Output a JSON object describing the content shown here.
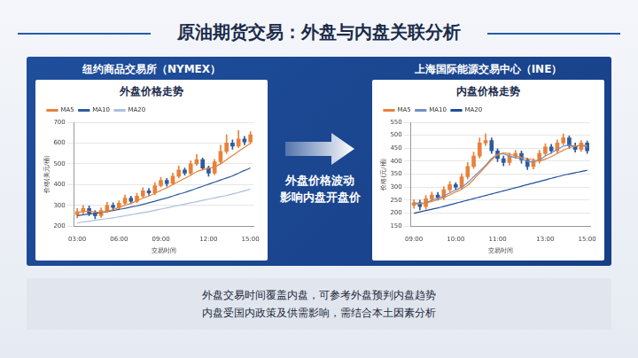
{
  "slide": {
    "title": "原油期货交易：外盘与内盘关联分析",
    "arrow_text": [
      "外盘价格波动",
      "影响内盘开盘价"
    ],
    "notes": [
      "外盘交易时间覆盖内盘，可参考外盘预判内盘趋势",
      "内盘受国内政策及供需影响，需结合本土因素分析"
    ]
  },
  "panels": [
    {
      "exchange": "纽约商品交易所（NYMEX）"
    },
    {
      "exchange": "上海国际能源交易中心（INE）"
    }
  ],
  "chart_data": [
    {
      "type": "candlestick",
      "title": "外盘价格走势",
      "x_label": "交易时间",
      "y_label": "价格(美元/桶)",
      "categories": [
        "03:00",
        null,
        null,
        null,
        null,
        null,
        null,
        "06:00",
        null,
        null,
        null,
        null,
        null,
        null,
        "09:00",
        null,
        null,
        null,
        null,
        null,
        null,
        null,
        "12:00",
        null,
        null,
        null,
        null,
        null,
        null,
        "15:00"
      ],
      "candles": {
        "open": [
          255,
          270,
          285,
          262,
          250,
          275,
          300,
          290,
          310,
          335,
          320,
          345,
          370,
          360,
          395,
          420,
          405,
          440,
          470,
          455,
          500,
          520,
          480,
          455,
          510,
          560,
          600,
          585,
          620,
          605
        ],
        "high": [
          285,
          300,
          298,
          275,
          288,
          315,
          312,
          322,
          350,
          345,
          358,
          385,
          382,
          410,
          435,
          430,
          455,
          490,
          480,
          515,
          545,
          528,
          490,
          522,
          590,
          640,
          615,
          660,
          632,
          655
        ],
        "low": [
          240,
          258,
          250,
          235,
          242,
          268,
          280,
          282,
          300,
          308,
          312,
          338,
          348,
          352,
          388,
          392,
          398,
          432,
          445,
          448,
          492,
          470,
          440,
          448,
          502,
          550,
          570,
          578,
          592,
          598
        ],
        "close": [
          270,
          285,
          262,
          250,
          275,
          300,
          290,
          310,
          335,
          320,
          345,
          370,
          360,
          395,
          420,
          405,
          440,
          470,
          455,
          500,
          520,
          480,
          455,
          510,
          560,
          600,
          585,
          620,
          605,
          640
        ],
        "colors": [
          "#e8823a",
          "#e8823a",
          "#2f5b9a",
          "#2f5b9a",
          "#e8823a",
          "#e8823a",
          "#2f5b9a",
          "#e8823a",
          "#e8823a",
          "#2f5b9a",
          "#e8823a",
          "#e8823a",
          "#2f5b9a",
          "#e8823a",
          "#e8823a",
          "#2f5b9a",
          "#e8823a",
          "#e8823a",
          "#2f5b9a",
          "#e8823a",
          "#e8823a",
          "#2f5b9a",
          "#2f5b9a",
          "#e8823a",
          "#e8823a",
          "#e8823a",
          "#2f5b9a",
          "#e8823a",
          "#2f5b9a",
          "#e8823a"
        ]
      },
      "series": [
        {
          "name": "MA5",
          "type": "line",
          "color": "#e8823a",
          "values": [
            265,
            270,
            272,
            268,
            266,
            272,
            280,
            290,
            300,
            310,
            322,
            335,
            345,
            358,
            372,
            385,
            400,
            415,
            430,
            445,
            462,
            472,
            478,
            485,
            500,
            520,
            540,
            560,
            580,
            598
          ]
        },
        {
          "name": "MA10",
          "type": "line",
          "color": "#2f5b9a",
          "values": [
            250,
            255,
            258,
            262,
            265,
            270,
            275,
            280,
            286,
            292,
            298,
            305,
            312,
            320,
            328,
            336,
            345,
            354,
            362,
            372,
            382,
            392,
            402,
            412,
            422,
            432,
            442,
            455,
            468,
            480
          ]
        },
        {
          "name": "MA20",
          "type": "line",
          "color": "#a9bfe0",
          "values": [
            215,
            220,
            224,
            228,
            232,
            236,
            240,
            245,
            250,
            255,
            260,
            265,
            270,
            276,
            282,
            288,
            294,
            300,
            306,
            312,
            318,
            324,
            330,
            336,
            342,
            348,
            355,
            362,
            370,
            378
          ]
        }
      ],
      "ylim": [
        200,
        700
      ],
      "yticks": [
        200,
        300,
        400,
        500,
        600,
        700
      ],
      "grid": true,
      "legend": "upper left"
    },
    {
      "type": "candlestick",
      "title": "内盘价格走势",
      "x_label": "交易时间",
      "y_label": "价格(元/桶)",
      "categories": [
        "09:00",
        null,
        null,
        null,
        null,
        null,
        null,
        "10:00",
        null,
        null,
        null,
        null,
        null,
        null,
        "11:00",
        null,
        null,
        null,
        null,
        null,
        null,
        null,
        "13:00",
        null,
        null,
        null,
        null,
        null,
        null,
        "15:00"
      ],
      "candles": {
        "open": [
          230,
          240,
          225,
          255,
          270,
          260,
          290,
          310,
          300,
          340,
          380,
          420,
          470,
          480,
          440,
          410,
          395,
          420,
          430,
          405,
          380,
          400,
          430,
          455,
          440,
          470,
          490,
          460,
          445,
          470
        ],
        "high": [
          252,
          250,
          268,
          282,
          280,
          302,
          322,
          318,
          352,
          395,
          435,
          490,
          505,
          490,
          448,
          420,
          432,
          442,
          440,
          412,
          410,
          442,
          468,
          465,
          482,
          505,
          498,
          470,
          480,
          478
        ],
        "low": [
          218,
          212,
          215,
          245,
          250,
          252,
          282,
          290,
          292,
          332,
          372,
          412,
          460,
          430,
          398,
          382,
          385,
          410,
          392,
          368,
          370,
          392,
          422,
          430,
          432,
          462,
          450,
          435,
          438,
          430
        ],
        "close": [
          240,
          225,
          255,
          270,
          260,
          290,
          310,
          300,
          340,
          380,
          420,
          470,
          480,
          440,
          410,
          395,
          420,
          430,
          405,
          380,
          400,
          430,
          455,
          440,
          470,
          490,
          460,
          445,
          470,
          440
        ],
        "colors": [
          "#e8823a",
          "#2f5b9a",
          "#e8823a",
          "#e8823a",
          "#2f5b9a",
          "#e8823a",
          "#e8823a",
          "#2f5b9a",
          "#e8823a",
          "#e8823a",
          "#e8823a",
          "#e8823a",
          "#e8823a",
          "#2f5b9a",
          "#2f5b9a",
          "#2f5b9a",
          "#e8823a",
          "#e8823a",
          "#2f5b9a",
          "#2f5b9a",
          "#e8823a",
          "#e8823a",
          "#e8823a",
          "#2f5b9a",
          "#e8823a",
          "#e8823a",
          "#2f5b9a",
          "#2f5b9a",
          "#e8823a",
          "#2f5b9a"
        ]
      },
      "series": [
        {
          "name": "MA5",
          "type": "line",
          "color": "#e8823a",
          "values": [
            235,
            236,
            238,
            245,
            252,
            260,
            270,
            282,
            292,
            308,
            330,
            355,
            380,
            405,
            425,
            432,
            428,
            420,
            415,
            410,
            405,
            402,
            408,
            418,
            430,
            442,
            452,
            458,
            462,
            460
          ]
        },
        {
          "name": "MA10",
          "type": "line",
          "color": "#6f8fc4",
          "values": [
            240,
            238,
            240,
            250,
            258,
            266,
            278,
            290,
            300,
            318,
            340,
            362,
            385,
            410,
            425,
            428,
            420,
            414,
            410,
            400,
            398,
            405,
            420,
            432,
            446,
            458,
            462,
            458,
            460,
            455
          ]
        },
        {
          "name": "MA20",
          "type": "line",
          "color": "#1f4e9c",
          "values": [
            200,
            205,
            210,
            215,
            220,
            226,
            232,
            238,
            244,
            250,
            256,
            262,
            268,
            274,
            280,
            286,
            292,
            298,
            304,
            310,
            316,
            322,
            328,
            334,
            340,
            346,
            351,
            356,
            360,
            365
          ]
        }
      ],
      "ylim": [
        150,
        550
      ],
      "yticks": [
        150,
        200,
        250,
        300,
        350,
        400,
        450,
        500,
        550
      ],
      "grid": true,
      "legend": "upper left"
    }
  ]
}
